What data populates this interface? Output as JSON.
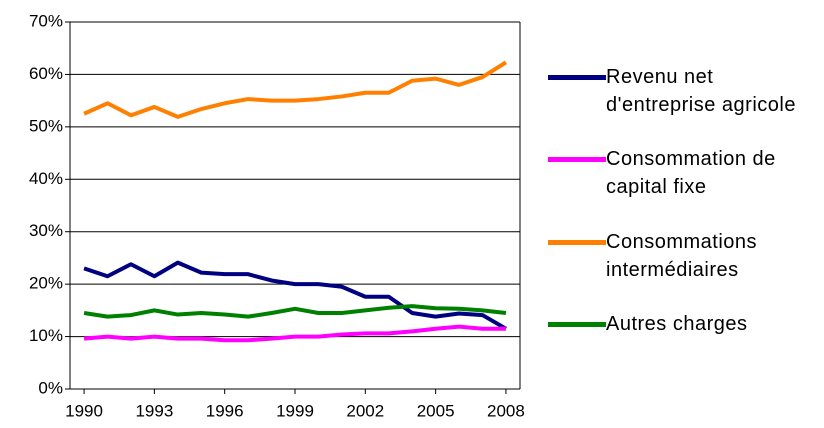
{
  "chart_data": {
    "type": "line",
    "x": [
      1990,
      1991,
      1992,
      1993,
      1994,
      1995,
      1996,
      1997,
      1998,
      1999,
      2000,
      2001,
      2002,
      2003,
      2004,
      2005,
      2006,
      2007,
      2008
    ],
    "xlim": [
      1989.4,
      2008.6
    ],
    "xticks": [
      1990,
      1993,
      1996,
      1999,
      2002,
      2005,
      2008
    ],
    "ylim": [
      0,
      70
    ],
    "yticks": [
      {
        "value": 0,
        "label": "0%"
      },
      {
        "value": 10,
        "label": "10%"
      },
      {
        "value": 20,
        "label": "20%"
      },
      {
        "value": 30,
        "label": "30%"
      },
      {
        "value": 40,
        "label": "40%"
      },
      {
        "value": 50,
        "label": "50%"
      },
      {
        "value": 60,
        "label": "60%"
      },
      {
        "value": 70,
        "label": "70%"
      }
    ],
    "grid": true,
    "series": [
      {
        "name": "Revenu net d'entreprise agricole",
        "color": "#000080",
        "values": [
          23,
          21.5,
          23.8,
          21.5,
          24.1,
          22.2,
          21.9,
          21.9,
          20.7,
          20,
          20,
          19.5,
          17.6,
          17.6,
          14.5,
          13.8,
          14.4,
          14.1,
          11.5
        ]
      },
      {
        "name": "Consommation de capital fixe",
        "color": "#ff00ff",
        "values": [
          9.6,
          10,
          9.6,
          10,
          9.6,
          9.6,
          9.3,
          9.3,
          9.6,
          10,
          10,
          10.4,
          10.6,
          10.6,
          11,
          11.5,
          11.9,
          11.5,
          11.5
        ]
      },
      {
        "name": "Consommations intermédiaires",
        "color": "#ff8000",
        "values": [
          52.5,
          54.5,
          52.2,
          53.8,
          51.9,
          53.4,
          54.5,
          55.3,
          55,
          55,
          55.3,
          55.8,
          56.5,
          56.5,
          58.8,
          59.2,
          58,
          59.5,
          62.3
        ]
      },
      {
        "name": "Autres charges",
        "color": "#008000",
        "values": [
          14.5,
          13.8,
          14.1,
          15,
          14.2,
          14.5,
          14.2,
          13.8,
          14.5,
          15.3,
          14.5,
          14.5,
          15,
          15.5,
          15.8,
          15.4,
          15.3,
          15,
          14.5
        ]
      }
    ]
  }
}
